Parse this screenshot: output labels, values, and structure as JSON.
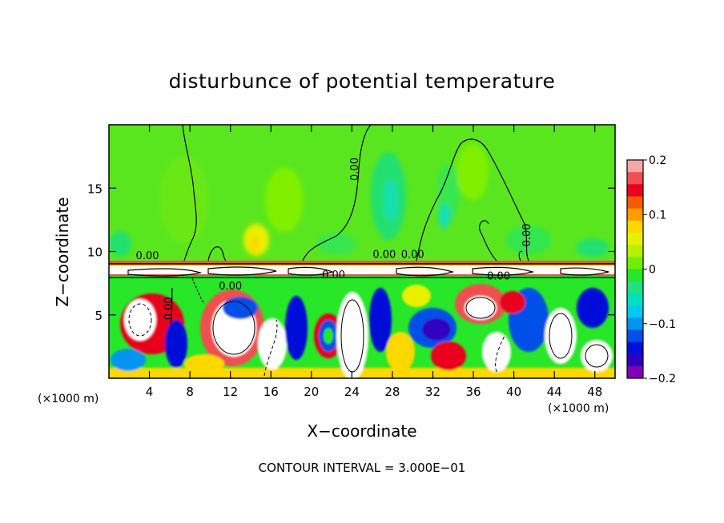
{
  "chart_data": {
    "type": "heatmap",
    "title": "disturbunce of potential temperature",
    "xlabel": "X−coordinate",
    "ylabel": "Z−coordinate",
    "x_unit": "(×1000 m)",
    "footer": "CONTOUR INTERVAL = 3.000E−01",
    "x_ticks": [
      "4",
      "8",
      "12",
      "16",
      "20",
      "24",
      "28",
      "32",
      "36",
      "40",
      "44",
      "48"
    ],
    "x_tick_values": [
      4,
      8,
      12,
      16,
      20,
      24,
      28,
      32,
      36,
      40,
      44,
      48
    ],
    "y_ticks": [
      "5",
      "10",
      "15"
    ],
    "y_tick_values": [
      5,
      10,
      15
    ],
    "xlim": [
      0,
      50
    ],
    "ylim": [
      0,
      20
    ],
    "inversion_height": 8.5,
    "contour_labels": [
      "0.00",
      "0.00",
      "0.00",
      "0.00",
      "0.00",
      "0.00",
      "0.00",
      "0.00",
      "0.00"
    ],
    "colorbar": {
      "range": [
        -0.2,
        0.2
      ],
      "tick_labels": [
        "0.2",
        "0.1",
        "0",
        "−0.1",
        "−0.2"
      ],
      "tick_values": [
        0.2,
        0.1,
        0,
        -0.1,
        -0.2
      ],
      "colors": [
        "#f4a8a8",
        "#f05050",
        "#e8001e",
        "#f55a00",
        "#ff9a00",
        "#ffd800",
        "#e8f000",
        "#b8f000",
        "#70f000",
        "#28e628",
        "#20e080",
        "#00e0c0",
        "#00c8f0",
        "#0096f0",
        "#0050e8",
        "#0010d8",
        "#3000c0",
        "#8000b8"
      ]
    }
  }
}
